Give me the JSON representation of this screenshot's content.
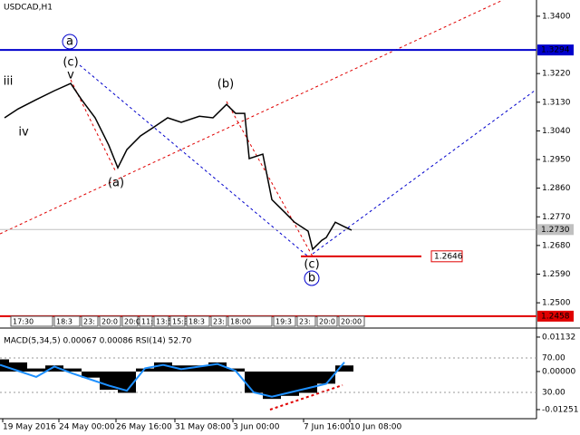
{
  "chart_data": [
    {
      "type": "line",
      "title": "USDCAD,H1",
      "color": "#000000",
      "x": [
        5,
        20,
        40,
        60,
        78,
        90,
        105,
        120,
        130,
        140,
        155,
        170,
        185,
        200,
        220,
        235,
        250,
        260,
        270,
        275,
        290,
        300,
        315,
        325,
        340,
        345,
        355,
        360,
        370,
        380,
        388
      ],
      "values": [
        1.3081,
        1.3109,
        1.3138,
        1.3166,
        1.3189,
        1.3138,
        1.3081,
        1.2995,
        1.2924,
        1.2981,
        1.3024,
        1.3052,
        1.3081,
        1.3067,
        1.3086,
        1.3081,
        1.3123,
        1.3095,
        1.3095,
        1.2953,
        1.2967,
        1.2824,
        1.2782,
        1.2753,
        1.2725,
        1.2668,
        1.2696,
        1.2705,
        1.2753,
        1.2739,
        1.2728
      ],
      "xlim": [
        0,
        592
      ],
      "ylim": [
        1.2432,
        1.3451
      ],
      "xticks": [
        {
          "value": 3,
          "label": "19 May 2016"
        },
        {
          "value": 65,
          "label": "24 May 00:00"
        },
        {
          "value": 128,
          "label": "26 May 16:00"
        },
        {
          "value": 193,
          "label": "31 May 08:00"
        },
        {
          "value": 257,
          "label": "3 Jun 00:00"
        },
        {
          "value": 335,
          "label": "7 Jun 16:00"
        },
        {
          "value": 386,
          "label": "10 Jun 08:00"
        }
      ],
      "yticks": [
        {
          "value": 1.34,
          "label": "1.3400"
        },
        {
          "value": 1.322,
          "label": "1.3220"
        },
        {
          "value": 1.313,
          "label": "1.3130"
        },
        {
          "value": 1.304,
          "label": "1.3040"
        },
        {
          "value": 1.295,
          "label": "1.2950"
        },
        {
          "value": 1.286,
          "label": "1.2860"
        },
        {
          "value": 1.277,
          "label": "1.2770"
        },
        {
          "value": 1.268,
          "label": "1.2680"
        },
        {
          "value": 1.259,
          "label": "1.2590"
        },
        {
          "value": 1.25,
          "label": "1.2500"
        }
      ],
      "hlines": [
        {
          "value": 1.3294,
          "color": "#0000cc"
        },
        {
          "value": 1.273,
          "label": "1.2730",
          "color": "#c0c0c0"
        },
        {
          "value": 1.2646,
          "color": "#e00000"
        },
        {
          "value": 1.2458,
          "color": "#e00000"
        }
      ],
      "annotations": [
        {
          "text": "a",
          "color": "#0000cc"
        },
        {
          "text": "(c)",
          "color": "#e00000"
        },
        {
          "text": "v",
          "color": "#808080"
        },
        {
          "text": "iii",
          "color": "#808080"
        },
        {
          "text": "iv",
          "color": "#808080"
        },
        {
          "text": "(b)",
          "color": "#e00000"
        },
        {
          "text": "(a)",
          "color": "#e00000"
        },
        {
          "text": "(c)",
          "color": "#e00000"
        },
        {
          "text": "b",
          "color": "#0000cc"
        }
      ],
      "time_markers": [
        "17:30",
        "18:3",
        "23:",
        "20:0",
        "20:0",
        "11:0",
        "13:5",
        "15:3",
        "18:3",
        "23:",
        "18:00",
        "19:3",
        "23:",
        "20:0",
        "20:00"
      ]
    },
    {
      "type": "bar",
      "title": "MACD(5,34,5) 0.00067 0.00086 RSI(14) 52.70",
      "x": [
        0,
        20,
        40,
        60,
        80,
        100,
        120,
        140,
        160,
        180,
        200,
        220,
        240,
        260,
        280,
        300,
        320,
        340,
        360,
        380
      ],
      "series": [
        {
          "color": "#000000",
          "values": [
            0.004,
            0.003,
            0.001,
            0.002,
            0.001,
            -0.002,
            -0.006,
            -0.007,
            0.001,
            0.003,
            0.002,
            0.002,
            0.003,
            0.001,
            -0.007,
            -0.009,
            -0.008,
            -0.007,
            -0.004,
            0.002
          ]
        },
        {
          "color": "#1e90ff",
          "axis": "y2",
          "values": [
            62,
            55,
            48,
            60,
            52,
            45,
            38,
            32,
            58,
            62,
            57,
            60,
            63,
            55,
            30,
            25,
            30,
            35,
            40,
            65
          ]
        }
      ],
      "xlim": [
        0,
        592
      ],
      "ylim": [
        -0.0155,
        0.0125
      ],
      "y2lim": [
        -0.5,
        98.4
      ],
      "yticks": [
        0.01132,
        {
          "value": 0,
          "label": "0.00000"
        },
        -0.01251
      ],
      "y2ticks": [
        {
          "value": 70,
          "label": "70.00"
        },
        {
          "value": 30,
          "label": "30.00"
        }
      ]
    }
  ]
}
